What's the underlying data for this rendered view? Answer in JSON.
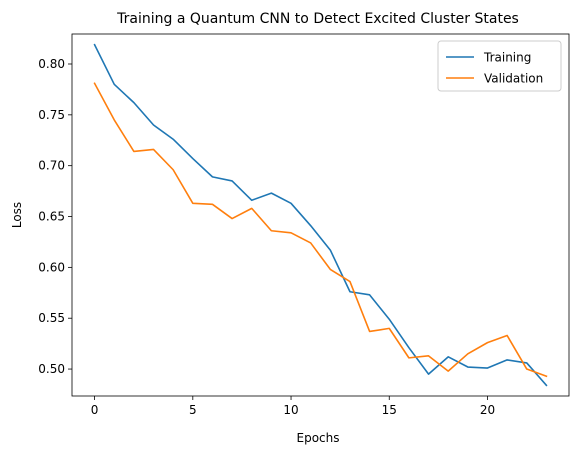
{
  "chart_data": {
    "type": "line",
    "title": "Training a Quantum CNN to Detect Excited Cluster States",
    "xlabel": "Epochs",
    "ylabel": "Loss",
    "xlim": [
      -1.15,
      24.15
    ],
    "ylim": [
      0.4735,
      0.8295
    ],
    "xticks": [
      0,
      5,
      10,
      15,
      20
    ],
    "xtick_labels": [
      "0",
      "5",
      "10",
      "15",
      "20"
    ],
    "yticks": [
      0.5,
      0.55,
      0.6,
      0.65,
      0.7,
      0.75,
      0.8
    ],
    "ytick_labels": [
      "0.50",
      "0.55",
      "0.60",
      "0.65",
      "0.70",
      "0.75",
      "0.80"
    ],
    "grid": false,
    "legend_position": "top-right",
    "x": [
      0,
      1,
      2,
      3,
      4,
      5,
      6,
      7,
      8,
      9,
      10,
      11,
      12,
      13,
      14,
      15,
      16,
      17,
      18,
      19,
      20,
      21,
      22,
      23
    ],
    "series": [
      {
        "name": "Training",
        "color": "#1f77b4",
        "values": [
          0.819,
          0.78,
          0.762,
          0.74,
          0.726,
          0.707,
          0.689,
          0.685,
          0.666,
          0.673,
          0.663,
          0.641,
          0.617,
          0.576,
          0.573,
          0.549,
          0.521,
          0.495,
          0.512,
          0.502,
          0.501,
          0.509,
          0.506,
          0.484
        ]
      },
      {
        "name": "Validation",
        "color": "#ff7f0e",
        "values": [
          0.781,
          0.745,
          0.714,
          0.716,
          0.696,
          0.663,
          0.662,
          0.648,
          0.658,
          0.636,
          0.634,
          0.624,
          0.598,
          0.586,
          0.537,
          0.54,
          0.511,
          0.513,
          0.498,
          0.515,
          0.526,
          0.533,
          0.5,
          0.493
        ]
      }
    ]
  }
}
